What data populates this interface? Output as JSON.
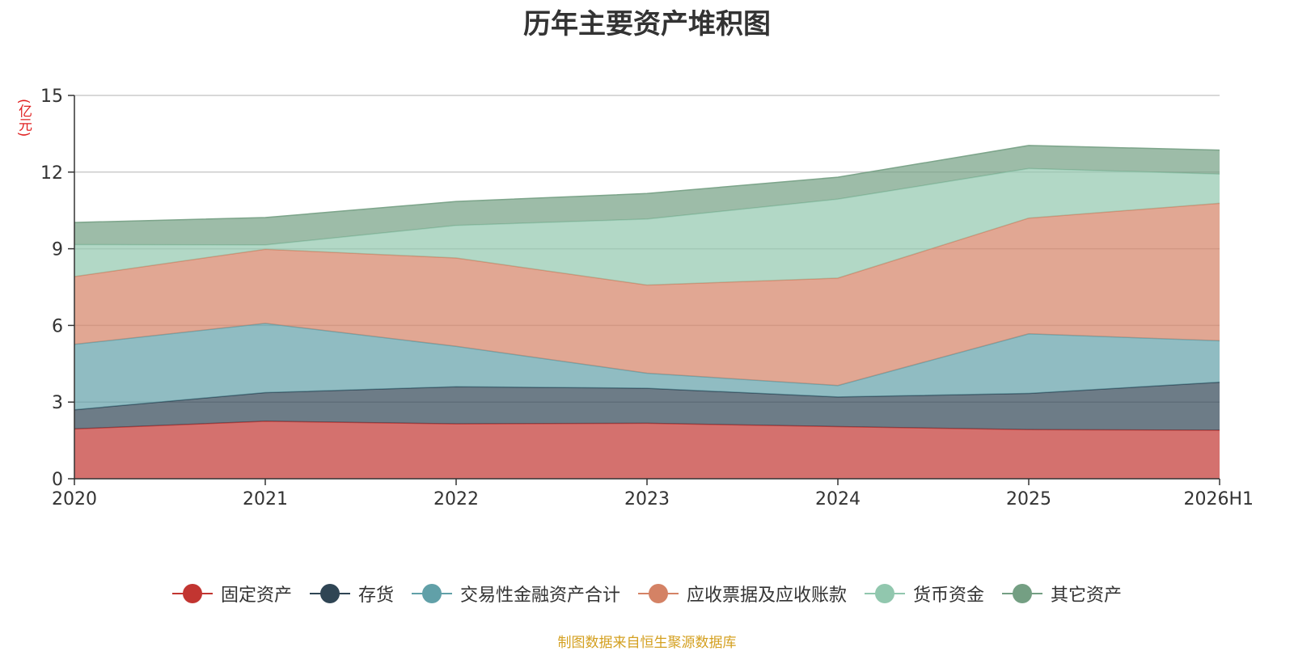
{
  "chart_data": {
    "type": "area",
    "stacked": true,
    "title": "历年主要资产堆积图",
    "unit_label": "(亿元)",
    "categories": [
      "2020",
      "2021",
      "2022",
      "2023",
      "2024",
      "2025",
      "2026H1"
    ],
    "ylim": [
      0,
      15
    ],
    "yticks": [
      0,
      3,
      6,
      9,
      12,
      15
    ],
    "grid": true,
    "legend_position": "bottom",
    "series": [
      {
        "name": "固定资产",
        "color": "#c23531",
        "values": [
          1.95,
          2.25,
          2.15,
          2.17,
          2.04,
          1.92,
          1.9
        ]
      },
      {
        "name": "存货",
        "color": "#2f4554",
        "values": [
          0.75,
          1.12,
          1.45,
          1.37,
          1.16,
          1.42,
          1.88
        ]
      },
      {
        "name": "交易性金融资产合计",
        "color": "#61a0a8",
        "values": [
          2.56,
          2.71,
          1.58,
          0.59,
          0.45,
          2.33,
          1.62
        ]
      },
      {
        "name": "应收票据及应收账款",
        "color": "#d48265",
        "values": [
          2.65,
          2.9,
          3.46,
          3.45,
          4.2,
          4.53,
          5.38
        ]
      },
      {
        "name": "货币资金",
        "color": "#91c7ae",
        "values": [
          1.25,
          0.17,
          1.27,
          2.58,
          3.09,
          1.94,
          1.14
        ]
      },
      {
        "name": "其它资产",
        "color": "#749f83",
        "values": [
          0.87,
          1.07,
          0.94,
          1.0,
          0.86,
          0.9,
          0.94
        ]
      }
    ],
    "source_note": "制图数据来自恒生聚源数据库"
  }
}
